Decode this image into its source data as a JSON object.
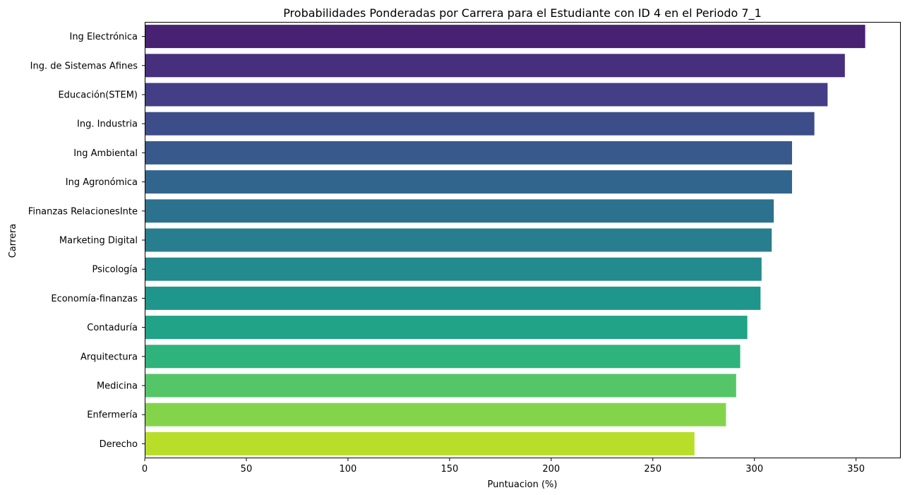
{
  "chart_data": {
    "type": "bar",
    "orientation": "horizontal",
    "title": "Probabilidades Ponderadas por Carrera para el Estudiante con ID 4 en el Periodo 7_1",
    "xlabel": "Puntuacion (%)",
    "ylabel": "Carrera",
    "xlim": [
      0,
      372
    ],
    "xticks": [
      0,
      50,
      100,
      150,
      200,
      250,
      300,
      350
    ],
    "grid": false,
    "categories": [
      "Ing Electrónica",
      "Ing. de Sistemas Afines",
      "Educación(STEM)",
      "Ing. Industria",
      "Ing Ambiental",
      "Ing Agronómica",
      "Finanzas RelacionesInte",
      "Marketing Digital",
      "Psicología",
      "Economía-finanzas",
      "Contaduría",
      "Arquitectura",
      "Medicina",
      "Enfermería",
      "Derecho"
    ],
    "values": [
      354.5,
      344.5,
      336,
      329.5,
      318.5,
      318.5,
      309.5,
      308.5,
      303.5,
      303,
      296.5,
      293,
      291,
      286,
      270.5
    ],
    "colors": [
      "#482173",
      "#472f7d",
      "#433e85",
      "#3d4d8a",
      "#38598c",
      "#32658e",
      "#2c728e",
      "#287d8e",
      "#238a8d",
      "#1f968b",
      "#20a386",
      "#2eb37c",
      "#55c667",
      "#84d44b",
      "#b8de29"
    ]
  }
}
